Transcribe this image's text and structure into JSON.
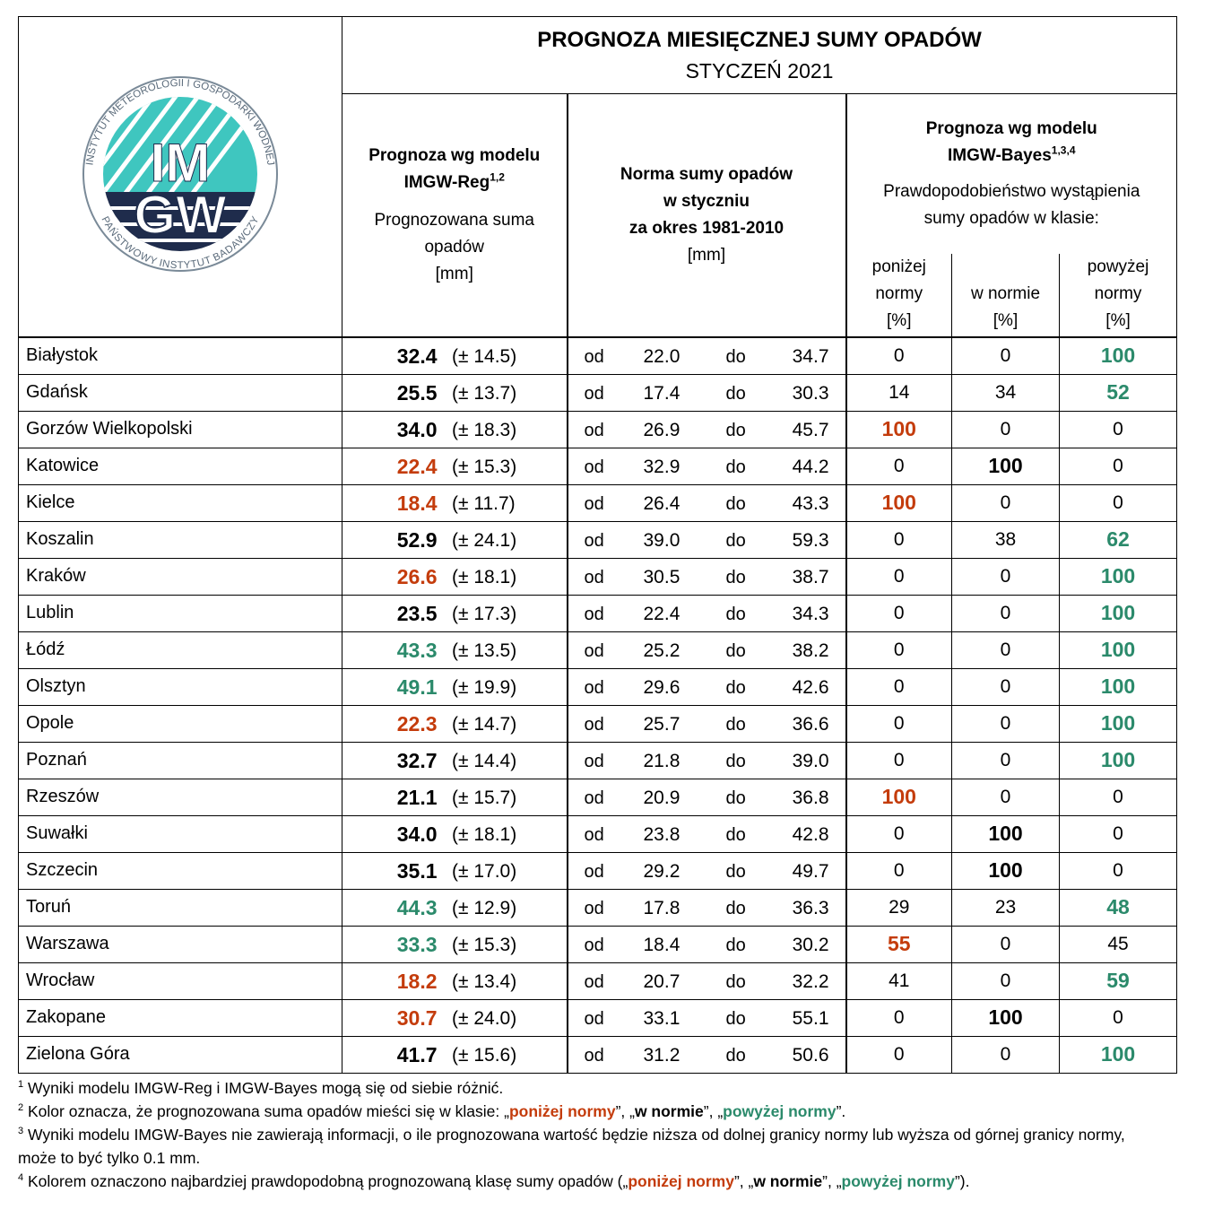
{
  "header": {
    "title": "PROGNOZA MIESIĘCZNEJ SUMY OPADÓW",
    "subtitle": "STYCZEŃ 2021"
  },
  "logo": {
    "top_letters": "IM",
    "bottom_letters": "GW",
    "ring_top": "INSTYTUT METEOROLOGII I GOSPODARKI WODNEJ",
    "ring_bottom": "PAŃSTWOWY INSTYTUT BADAWCZY"
  },
  "columns": {
    "reg": {
      "title1": "Prognoza wg modelu",
      "title2": "IMGW-Reg",
      "sup": "1,2",
      "desc1": "Prognozowana suma",
      "desc2": "opadów",
      "unit": "[mm]"
    },
    "norm": {
      "title1": "Norma sumy opadów",
      "title2": "w styczniu",
      "title3": "za okres 1981-2010",
      "unit": "[mm]",
      "from_word": "od",
      "to_word": "do"
    },
    "bayes": {
      "title1": "Prognoza wg modelu",
      "title2": "IMGW-Bayes",
      "sup": "1,3,4",
      "desc1": "Prawdopodobieństwo wystąpienia",
      "desc2": "sumy opadów w klasie:",
      "sub": [
        [
          "poniżej",
          "normy",
          "[%]"
        ],
        [
          "w normie",
          "[%]"
        ],
        [
          "powyżej",
          "normy",
          "[%]"
        ]
      ]
    }
  },
  "classes": [
    "below",
    "normal",
    "above"
  ],
  "colors": {
    "below": "#c43c0c",
    "normal": "#000000",
    "above": "#2b8a6b"
  },
  "table": {
    "rows": [
      {
        "city": "Białystok",
        "reg": "32.4",
        "reg_error": "(± 14.5)",
        "norm_from": "22.0",
        "norm_to": "34.7",
        "probabilities": [
          0,
          0,
          100
        ],
        "reg_class": "normal",
        "bayes_class": "above"
      },
      {
        "city": "Gdańsk",
        "reg": "25.5",
        "reg_error": "(± 13.7)",
        "norm_from": "17.4",
        "norm_to": "30.3",
        "probabilities": [
          14,
          34,
          52
        ],
        "reg_class": "normal",
        "bayes_class": "above"
      },
      {
        "city": "Gorzów Wielkopolski",
        "reg": "34.0",
        "reg_error": "(± 18.3)",
        "norm_from": "26.9",
        "norm_to": "45.7",
        "probabilities": [
          100,
          0,
          0
        ],
        "reg_class": "normal",
        "bayes_class": "below"
      },
      {
        "city": "Katowice",
        "reg": "22.4",
        "reg_error": "(± 15.3)",
        "norm_from": "32.9",
        "norm_to": "44.2",
        "probabilities": [
          0,
          100,
          0
        ],
        "reg_class": "below",
        "bayes_class": "normal"
      },
      {
        "city": "Kielce",
        "reg": "18.4",
        "reg_error": "(± 11.7)",
        "norm_from": "26.4",
        "norm_to": "43.3",
        "probabilities": [
          100,
          0,
          0
        ],
        "reg_class": "below",
        "bayes_class": "below"
      },
      {
        "city": "Koszalin",
        "reg": "52.9",
        "reg_error": "(± 24.1)",
        "norm_from": "39.0",
        "norm_to": "59.3",
        "probabilities": [
          0,
          38,
          62
        ],
        "reg_class": "normal",
        "bayes_class": "above"
      },
      {
        "city": "Kraków",
        "reg": "26.6",
        "reg_error": "(± 18.1)",
        "norm_from": "30.5",
        "norm_to": "38.7",
        "probabilities": [
          0,
          0,
          100
        ],
        "reg_class": "below",
        "bayes_class": "above"
      },
      {
        "city": "Lublin",
        "reg": "23.5",
        "reg_error": "(± 17.3)",
        "norm_from": "22.4",
        "norm_to": "34.3",
        "probabilities": [
          0,
          0,
          100
        ],
        "reg_class": "normal",
        "bayes_class": "above"
      },
      {
        "city": "Łódź",
        "reg": "43.3",
        "reg_error": "(± 13.5)",
        "norm_from": "25.2",
        "norm_to": "38.2",
        "probabilities": [
          0,
          0,
          100
        ],
        "reg_class": "above",
        "bayes_class": "above"
      },
      {
        "city": "Olsztyn",
        "reg": "49.1",
        "reg_error": "(± 19.9)",
        "norm_from": "29.6",
        "norm_to": "42.6",
        "probabilities": [
          0,
          0,
          100
        ],
        "reg_class": "above",
        "bayes_class": "above"
      },
      {
        "city": "Opole",
        "reg": "22.3",
        "reg_error": "(± 14.7)",
        "norm_from": "25.7",
        "norm_to": "36.6",
        "probabilities": [
          0,
          0,
          100
        ],
        "reg_class": "below",
        "bayes_class": "above"
      },
      {
        "city": "Poznań",
        "reg": "32.7",
        "reg_error": "(± 14.4)",
        "norm_from": "21.8",
        "norm_to": "39.0",
        "probabilities": [
          0,
          0,
          100
        ],
        "reg_class": "normal",
        "bayes_class": "above"
      },
      {
        "city": "Rzeszów",
        "reg": "21.1",
        "reg_error": "(± 15.7)",
        "norm_from": "20.9",
        "norm_to": "36.8",
        "probabilities": [
          100,
          0,
          0
        ],
        "reg_class": "normal",
        "bayes_class": "below"
      },
      {
        "city": "Suwałki",
        "reg": "34.0",
        "reg_error": "(± 18.1)",
        "norm_from": "23.8",
        "norm_to": "42.8",
        "probabilities": [
          0,
          100,
          0
        ],
        "reg_class": "normal",
        "bayes_class": "normal"
      },
      {
        "city": "Szczecin",
        "reg": "35.1",
        "reg_error": "(± 17.0)",
        "norm_from": "29.2",
        "norm_to": "49.7",
        "probabilities": [
          0,
          100,
          0
        ],
        "reg_class": "normal",
        "bayes_class": "normal"
      },
      {
        "city": "Toruń",
        "reg": "44.3",
        "reg_error": "(± 12.9)",
        "norm_from": "17.8",
        "norm_to": "36.3",
        "probabilities": [
          29,
          23,
          48
        ],
        "reg_class": "above",
        "bayes_class": "above"
      },
      {
        "city": "Warszawa",
        "reg": "33.3",
        "reg_error": "(± 15.3)",
        "norm_from": "18.4",
        "norm_to": "30.2",
        "probabilities": [
          55,
          0,
          45
        ],
        "reg_class": "above",
        "bayes_class": "below"
      },
      {
        "city": "Wrocław",
        "reg": "18.2",
        "reg_error": "(± 13.4)",
        "norm_from": "20.7",
        "norm_to": "32.2",
        "probabilities": [
          41,
          0,
          59
        ],
        "reg_class": "below",
        "bayes_class": "above"
      },
      {
        "city": "Zakopane",
        "reg": "30.7",
        "reg_error": "(± 24.0)",
        "norm_from": "33.1",
        "norm_to": "55.1",
        "probabilities": [
          0,
          100,
          0
        ],
        "reg_class": "below",
        "bayes_class": "normal"
      },
      {
        "city": "Zielona Góra",
        "reg": "41.7",
        "reg_error": "(± 15.6)",
        "norm_from": "31.2",
        "norm_to": "50.6",
        "probabilities": [
          0,
          0,
          100
        ],
        "reg_class": "normal",
        "bayes_class": "above"
      }
    ]
  },
  "notes": [
    {
      "num": "1",
      "parts": [
        "Wyniki modelu IMGW-Reg i IMGW-Bayes mogą się od siebie różnić."
      ]
    },
    {
      "num": "2",
      "parts": [
        "Kolor oznacza, że prognozowana suma opadów mieści się w klasie:  „",
        "poniżej normy",
        "”, „",
        "w normie",
        "”, „",
        "powyżej normy",
        "”."
      ]
    },
    {
      "num": "3",
      "parts": [
        "Wyniki modelu IMGW-Bayes nie zawierają informacji, o ile prognozowana wartość będzie niższa od dolnej granicy normy lub wyższa od górnej granicy normy, może to być tylko 0.1 mm."
      ]
    },
    {
      "num": "4",
      "parts": [
        "Kolorem oznaczono najbardziej prawdopodobną prognozowaną klasę sumy opadów („",
        "poniżej normy",
        "”, „",
        "w normie",
        "”, „",
        "powyżej normy",
        "”)."
      ]
    }
  ]
}
